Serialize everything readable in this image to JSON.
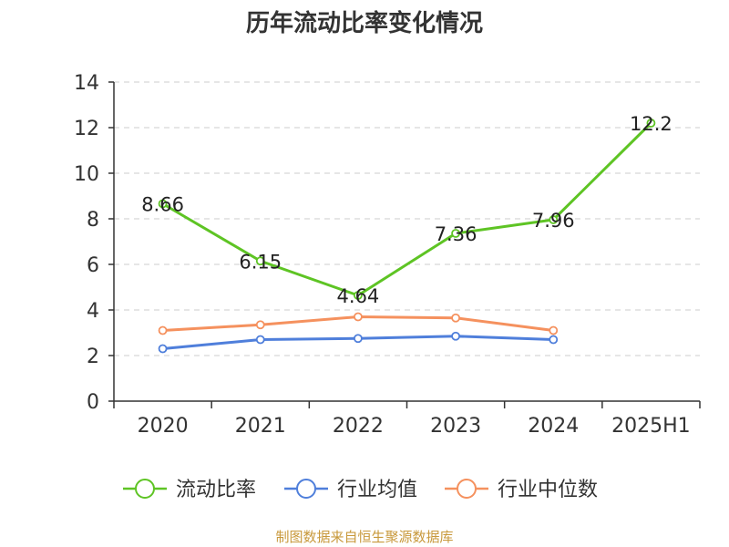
{
  "chart_data": {
    "type": "line",
    "title": "历年流动比率变化情况",
    "categories": [
      "2020",
      "2021",
      "2022",
      "2023",
      "2024",
      "2025H1"
    ],
    "ylim": [
      0,
      14
    ],
    "yticks": [
      0,
      2,
      4,
      6,
      8,
      10,
      12,
      14
    ],
    "grid": true,
    "legend_position": "bottom",
    "series": [
      {
        "name": "流动比率",
        "color": "#5ec424",
        "values": [
          8.66,
          6.15,
          4.64,
          7.36,
          7.96,
          12.2
        ],
        "show_labels": true
      },
      {
        "name": "行业均值",
        "color": "#4f7fdb",
        "values": [
          2.3,
          2.7,
          2.75,
          2.85,
          2.7,
          null
        ],
        "show_labels": false
      },
      {
        "name": "行业中位数",
        "color": "#f5915e",
        "values": [
          3.1,
          3.35,
          3.7,
          3.65,
          3.1,
          null
        ],
        "show_labels": false
      }
    ],
    "data_labels": [
      "8.66",
      "6.15",
      "4.64",
      "7.36",
      "7.96",
      "12.2"
    ]
  },
  "footer": {
    "source": "制图数据来自恒生聚源数据库"
  }
}
